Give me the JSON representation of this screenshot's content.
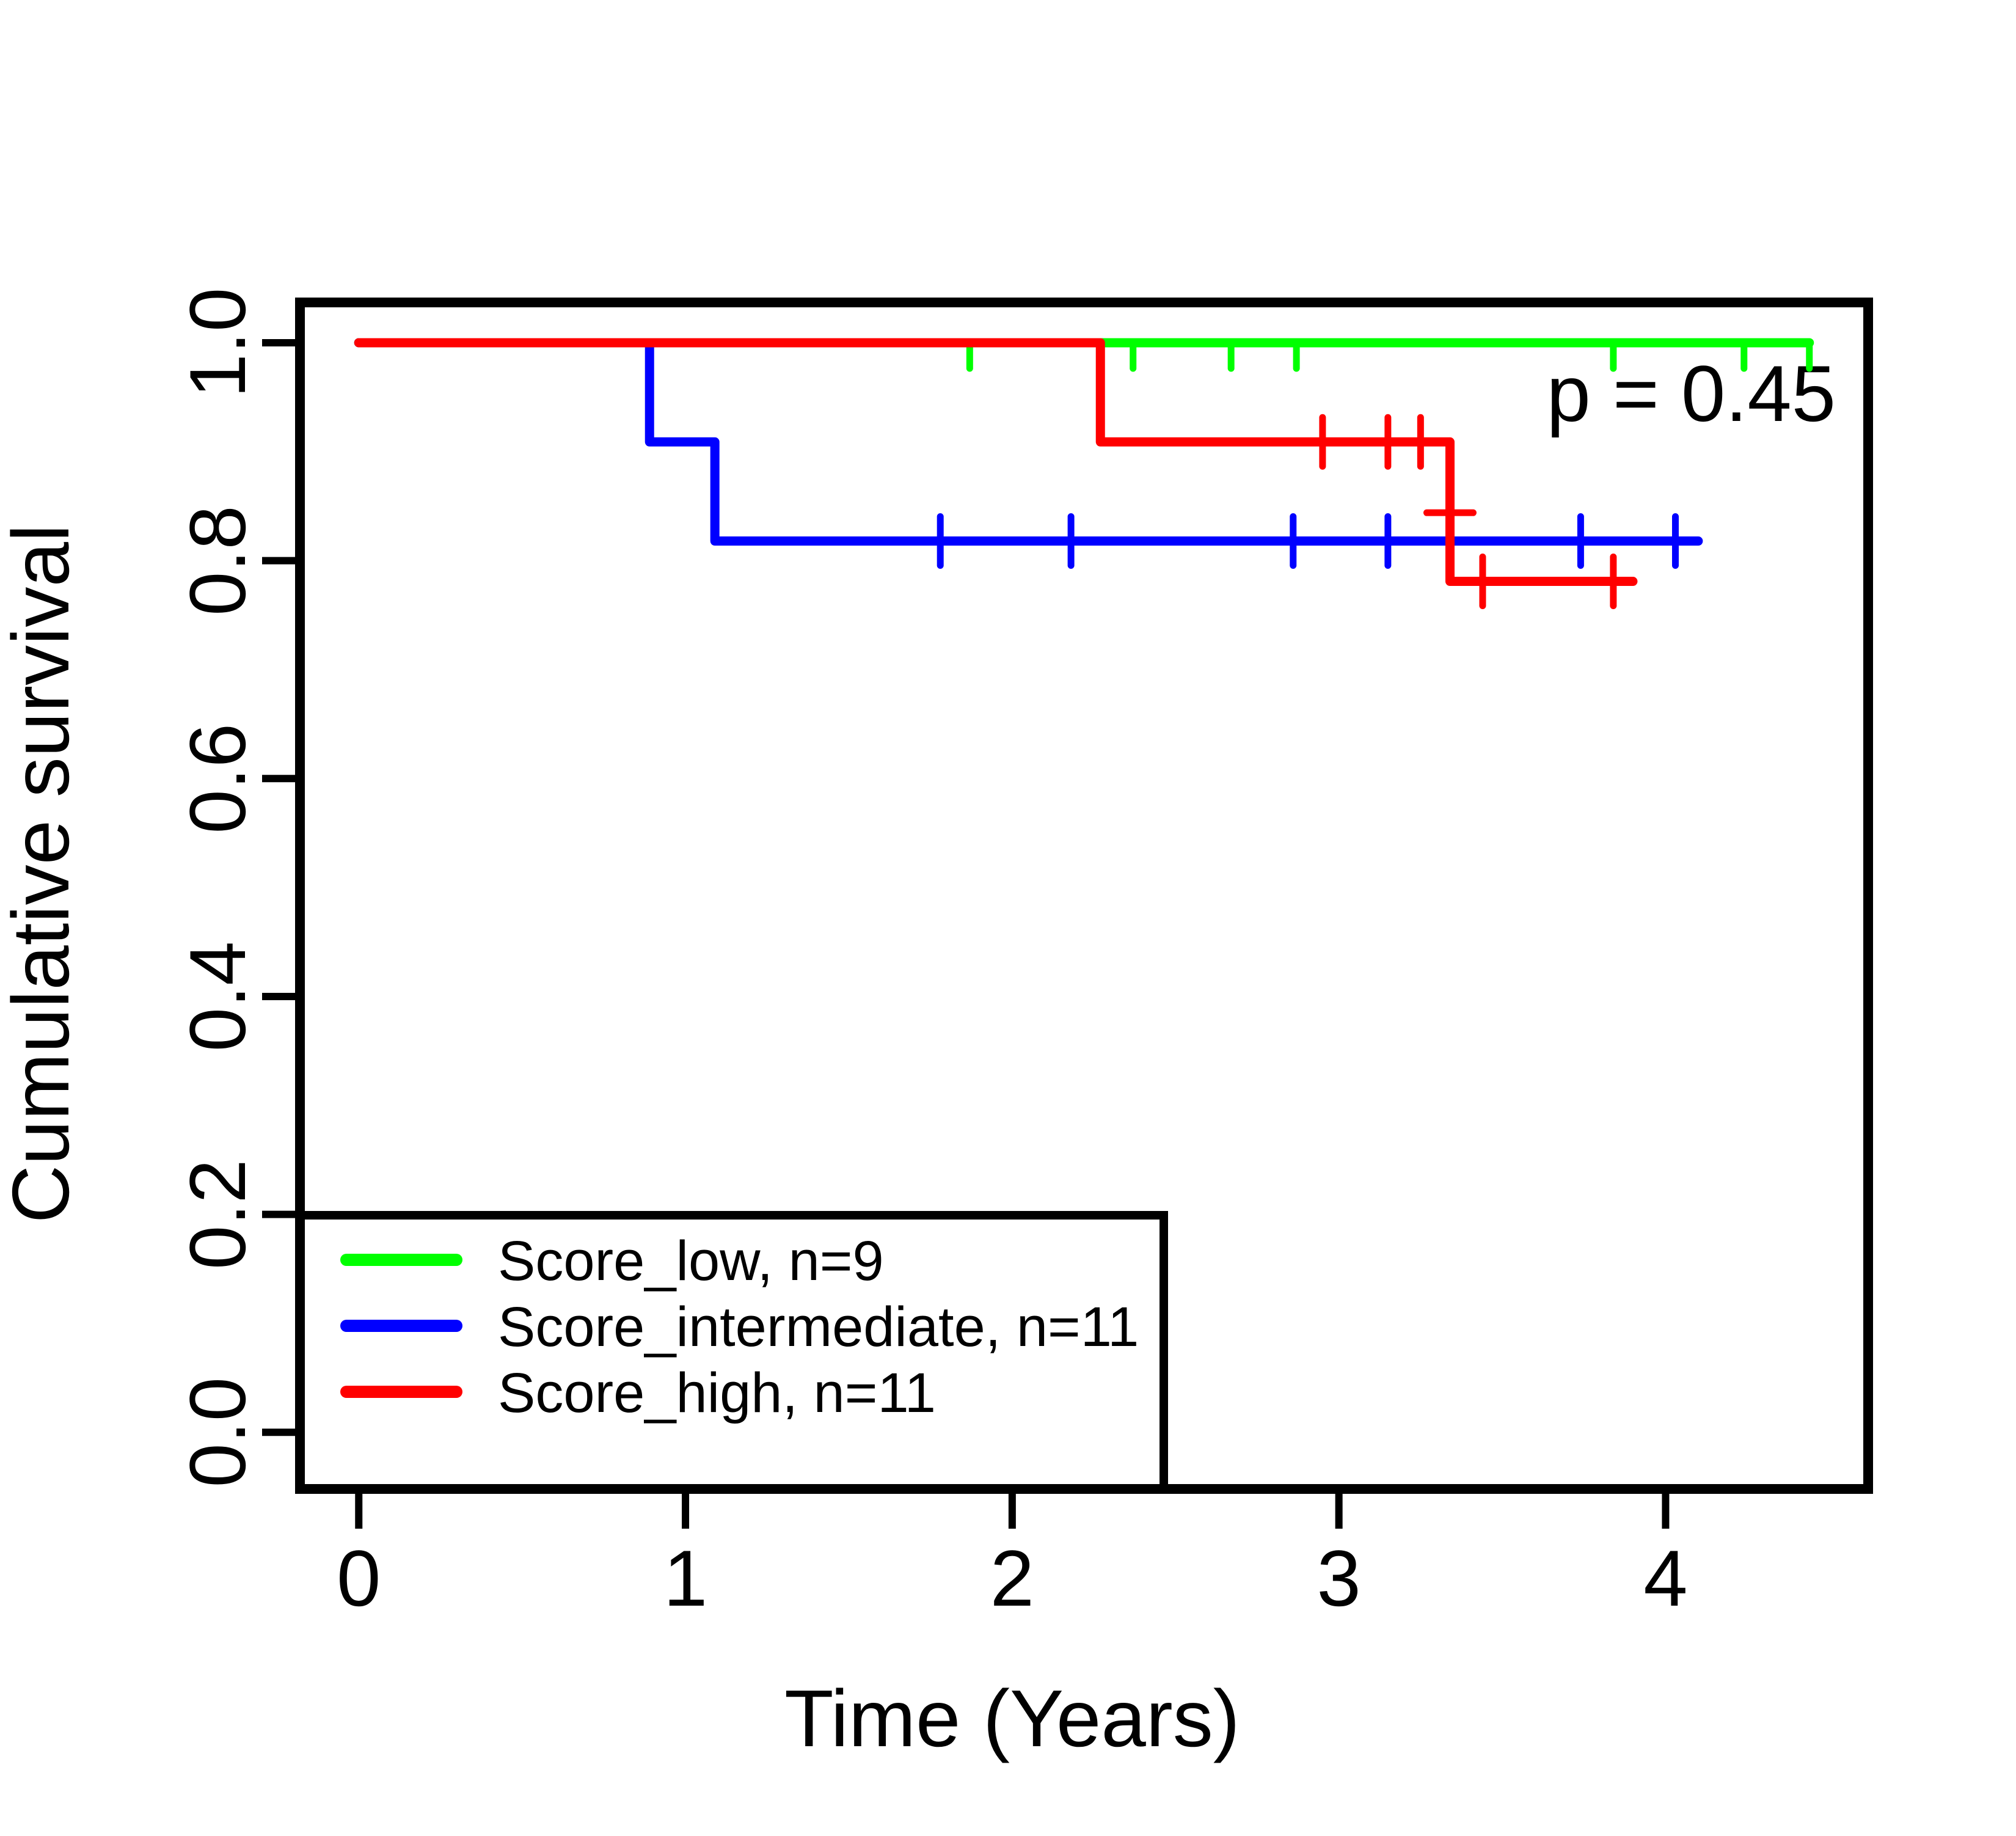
{
  "figure": {
    "background": "#ffffff",
    "annotation": "p = 0.45"
  },
  "chart_data": {
    "type": "line",
    "subtype": "kaplan-meier-step-survival",
    "title": "",
    "xlabel": "Time (Years)",
    "ylabel": "Cumulative survival",
    "annotation": "p = 0.45",
    "grid": false,
    "legend_position": "bottom-left",
    "axis_color": "#000000",
    "text_color": "#000000",
    "xlim": [
      -0.18,
      4.62
    ],
    "ylim": [
      -0.052,
      1.037
    ],
    "x_ticks": [
      {
        "label": "0",
        "value": 0
      },
      {
        "label": "1",
        "value": 1
      },
      {
        "label": "2",
        "value": 2
      },
      {
        "label": "3",
        "value": 3
      },
      {
        "label": "4",
        "value": 4
      }
    ],
    "y_ticks": [
      {
        "label": "1.0",
        "value": 1.0
      },
      {
        "label": "0.8",
        "value": 0.8
      },
      {
        "label": "0.6",
        "value": 0.6
      },
      {
        "label": "0.4",
        "value": 0.4
      },
      {
        "label": "0.2",
        "value": 0.2
      },
      {
        "label": "0.0",
        "value": 0.0
      }
    ],
    "series": [
      {
        "id": "score-low",
        "name": "Score_low, n=9",
        "color": "#00FF00",
        "censor_style": "half-down",
        "steps": [
          [
            0.0,
            1.0
          ],
          [
            4.44,
            1.0
          ]
        ],
        "censors": [
          [
            1.87,
            1.0
          ],
          [
            2.37,
            1.0
          ],
          [
            2.67,
            1.0
          ],
          [
            2.87,
            1.0
          ],
          [
            3.84,
            1.0
          ],
          [
            4.24,
            1.0
          ],
          [
            4.44,
            1.0
          ]
        ],
        "extra_marks": []
      },
      {
        "id": "score-intermediate",
        "name": "Score_intermediate, n=11",
        "color": "#0000FF",
        "censor_style": "full",
        "steps": [
          [
            0.0,
            1.0
          ],
          [
            0.89,
            1.0
          ],
          [
            0.89,
            0.909
          ],
          [
            1.09,
            0.909
          ],
          [
            1.09,
            0.818
          ],
          [
            4.1,
            0.818
          ]
        ],
        "censors": [
          [
            1.78,
            0.818
          ],
          [
            2.18,
            0.818
          ],
          [
            2.86,
            0.818
          ],
          [
            3.15,
            0.818
          ],
          [
            3.74,
            0.818
          ],
          [
            4.03,
            0.818
          ]
        ],
        "extra_marks": []
      },
      {
        "id": "score-high",
        "name": "Score_high, n=11",
        "color": "#FF0000",
        "censor_style": "full",
        "steps": [
          [
            0.0,
            1.0
          ],
          [
            2.27,
            1.0
          ],
          [
            2.27,
            0.909
          ],
          [
            3.34,
            0.909
          ],
          [
            3.34,
            0.781
          ],
          [
            3.9,
            0.781
          ]
        ],
        "censors": [
          [
            2.95,
            0.909
          ],
          [
            3.15,
            0.909
          ],
          [
            3.25,
            0.909
          ],
          [
            3.44,
            0.781
          ],
          [
            3.84,
            0.781
          ]
        ],
        "extra_marks": [
          {
            "type": "hdash",
            "x": 3.34,
            "y": 0.844
          }
        ]
      }
    ]
  }
}
